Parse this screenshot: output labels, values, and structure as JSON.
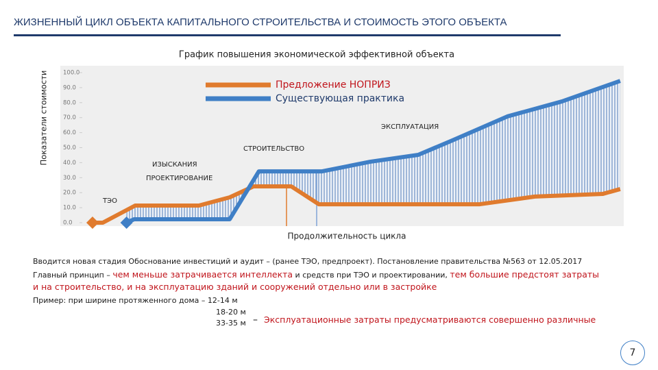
{
  "header": {
    "title": "ЖИЗНЕННЫЙ ЦИКЛ ОБЪЕКТА КАПИТАЛЬНОГО СТРОИТЕЛЬСТВА И СТОИМОСТЬ ЭТОГО ОБЪЕКТА"
  },
  "chart_data": {
    "type": "line",
    "title": "График повышения экономической эффективной объекта",
    "y_label": "Показатели стоимости",
    "x_label": "Продолжительность цикла",
    "xlim": [
      0,
      100
    ],
    "ylim": [
      0,
      100
    ],
    "yticks": [
      {
        "value": 0,
        "label": "0.0"
      },
      {
        "value": 10,
        "label": "10.0"
      },
      {
        "value": 20,
        "label": "20.0"
      },
      {
        "value": 30,
        "label": "30.0"
      },
      {
        "value": 40,
        "label": "40.0"
      },
      {
        "value": 50,
        "label": "50.0"
      },
      {
        "value": 60,
        "label": "60.0"
      },
      {
        "value": 70,
        "label": "70.0"
      },
      {
        "value": 80,
        "label": "80.0"
      },
      {
        "value": 90,
        "label": "90.0"
      },
      {
        "value": 100,
        "label": "100.0"
      }
    ],
    "series": [
      {
        "name": "Предложение НОПРИЗ",
        "color": "#e07b2e",
        "x": [
          1.9,
          3.8,
          9.8,
          21.6,
          27.3,
          31.7,
          38.7,
          43.8,
          73.6,
          83.8,
          96.4,
          99.6
        ],
        "values": [
          0,
          0,
          11.4,
          11.4,
          16.9,
          24.2,
          24.2,
          12.3,
          12.3,
          17.4,
          19.2,
          22.4
        ]
      },
      {
        "name": "Существующая практика",
        "color": "#3f7fc6",
        "x": [
          8.2,
          9.6,
          27.3,
          32.7,
          44.4,
          53.3,
          62.2,
          68.5,
          78.7,
          88.8,
          99.6
        ],
        "values": [
          0,
          2.3,
          2.3,
          34.2,
          34.2,
          40.6,
          45.2,
          54.8,
          70.8,
          80.8,
          94.5
        ]
      }
    ],
    "annotations": [
      "ТЭО",
      "ИЗЫСКАНИЯ",
      "ПРОЕКТИРОВАНИЕ",
      "СТРОИТЕЛЬСТВО",
      "ЭКСПЛУАТАЦИЯ"
    ]
  },
  "text": {
    "line1": "Вводится новая стадия Обоснование инвестиций и аудит – (ранее ТЭО, предпроект). Постановление правительства №563 от 12.05.2017",
    "line2": [
      "Главный принцип – ",
      "чем меньше затрачивается интеллекта",
      " и средств при ТЭО и проектировании, ",
      "тем большие предстоят затраты"
    ],
    "line3": "и на строительство, и на эксплуатацию зданий и сооружений отдельно или в застройке",
    "line4": "Пример: при ширине протяженного дома – 12-14 м",
    "line5": "18-20 м",
    "line6": "33-35 м",
    "dash": "–",
    "conclusion": "Эксплуатационные затраты предусматриваются совершенно различные"
  },
  "page_number": "7"
}
